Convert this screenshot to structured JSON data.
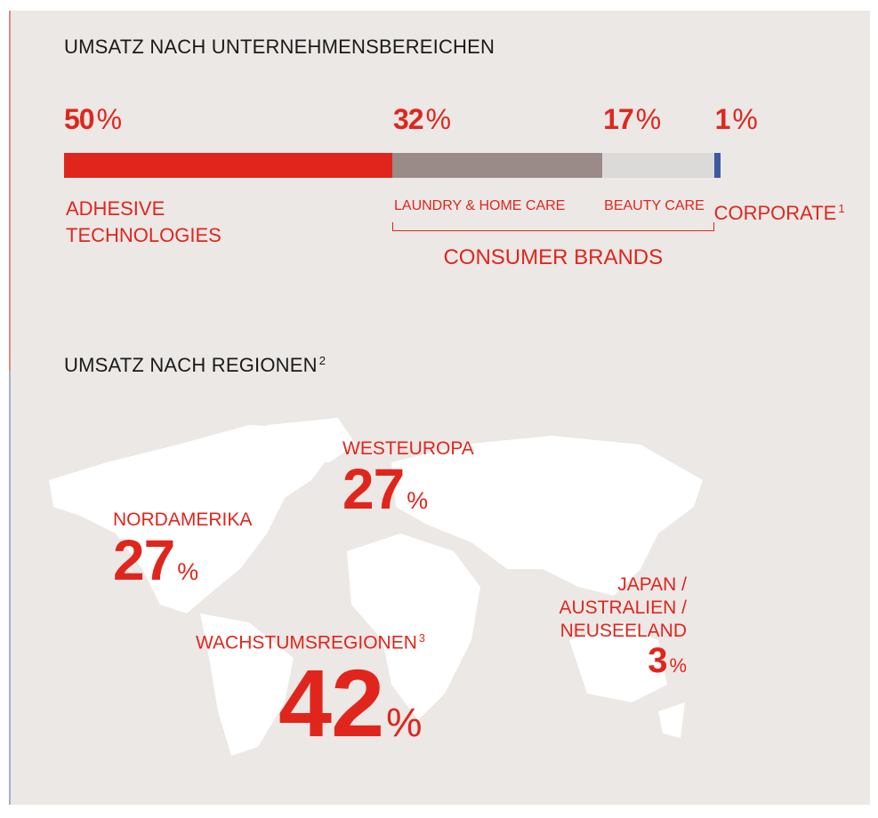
{
  "chart_data": [
    {
      "type": "stacked-bar",
      "title": "UMSATZ NACH UNTERNEHMENSBEREICHEN",
      "unit": "%",
      "xlim": [
        0,
        100
      ],
      "series": [
        {
          "name": "ADHESIVE TECHNOLOGIES",
          "color": "#e0261c",
          "values": [
            50
          ]
        },
        {
          "name": "LAUNDRY & HOME CARE",
          "color": "#9a8a88",
          "values": [
            32
          ]
        },
        {
          "name": "BEAUTY CARE",
          "color": "#dcd9d9",
          "values": [
            17
          ]
        },
        {
          "name": "CORPORATE",
          "footnote": "1",
          "color": "#3b5aa0",
          "values": [
            1
          ]
        }
      ],
      "group_label": "CONSUMER BRANDS"
    },
    {
      "type": "map",
      "title": "UMSATZ NACH REGIONEN",
      "title_footnote": "2",
      "unit": "%",
      "categories": [
        "WESTEUROPA",
        "NORDAMERIKA",
        "WACHSTUMSREGIONEN",
        "JAPAN / AUSTRALIEN / NEUSEELAND"
      ],
      "footnotes": [
        null,
        null,
        "3",
        null
      ],
      "values": [
        27,
        27,
        42,
        3
      ],
      "color": "#e0261c"
    }
  ]
}
